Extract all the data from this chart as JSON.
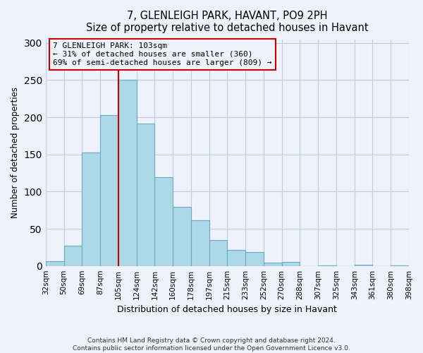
{
  "title": "7, GLENLEIGH PARK, HAVANT, PO9 2PH",
  "subtitle": "Size of property relative to detached houses in Havant",
  "xlabel": "Distribution of detached houses by size in Havant",
  "ylabel": "Number of detached properties",
  "bin_labels": [
    "32sqm",
    "50sqm",
    "69sqm",
    "87sqm",
    "105sqm",
    "124sqm",
    "142sqm",
    "160sqm",
    "178sqm",
    "197sqm",
    "215sqm",
    "233sqm",
    "252sqm",
    "270sqm",
    "288sqm",
    "307sqm",
    "325sqm",
    "343sqm",
    "361sqm",
    "380sqm",
    "398sqm"
  ],
  "bar_heights": [
    6,
    27,
    153,
    203,
    250,
    192,
    119,
    79,
    61,
    35,
    22,
    19,
    4,
    5,
    0,
    1,
    0,
    2,
    0,
    1
  ],
  "bar_color": "#add8e6",
  "bar_edge_color": "#6aa9c8",
  "property_line_x": 4,
  "property_line_color": "#cc0000",
  "annotation_line1": "7 GLENLEIGH PARK: 103sqm",
  "annotation_line2": "← 31% of detached houses are smaller (360)",
  "annotation_line3": "69% of semi-detached houses are larger (809) →",
  "annotation_box_color": "#cc0000",
  "ylim": [
    0,
    305
  ],
  "yticks": [
    0,
    50,
    100,
    150,
    200,
    250,
    300
  ],
  "footer_line1": "Contains HM Land Registry data © Crown copyright and database right 2024.",
  "footer_line2": "Contains public sector information licensed under the Open Government Licence v3.0.",
  "bg_color": "#eef2fb",
  "grid_color": "#c0cce0"
}
